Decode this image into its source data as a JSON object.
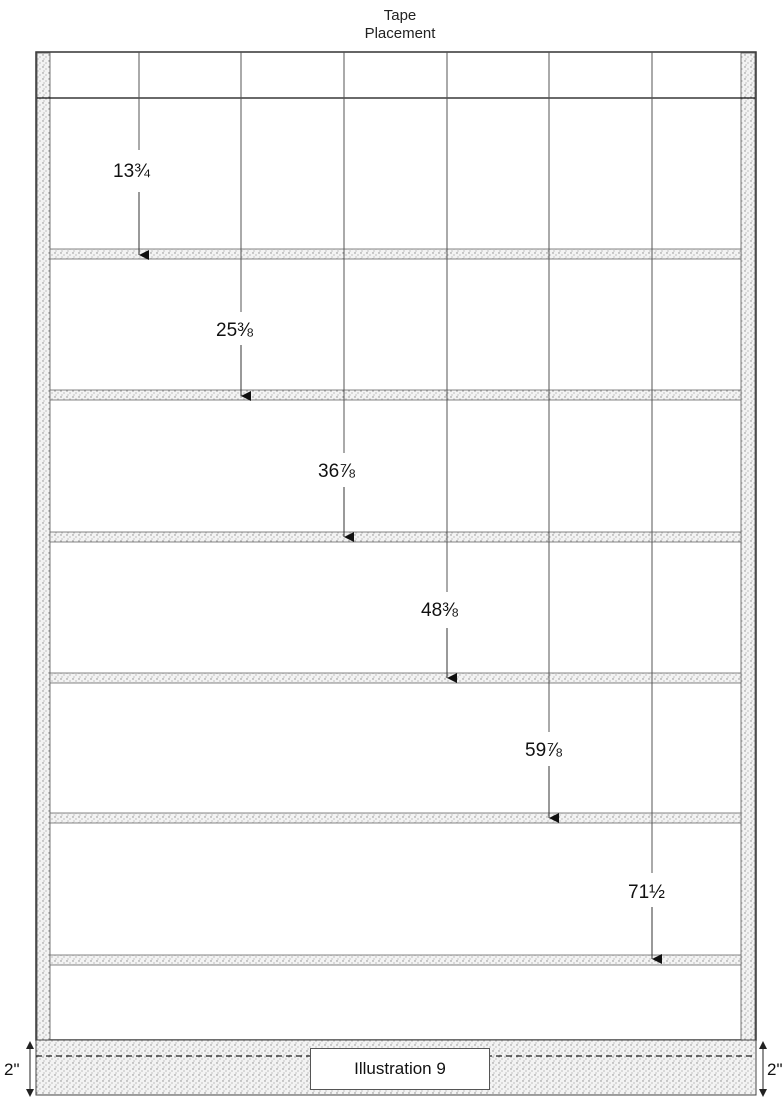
{
  "title": {
    "line1": "Tape",
    "line2": "Placement"
  },
  "measurements": [
    "13¾",
    "25⅜",
    "36⅞",
    "48⅜",
    "59⅞",
    "71½"
  ],
  "caption": "Illustration 9",
  "dimension_left": "2\"",
  "dimension_right": "2\""
}
